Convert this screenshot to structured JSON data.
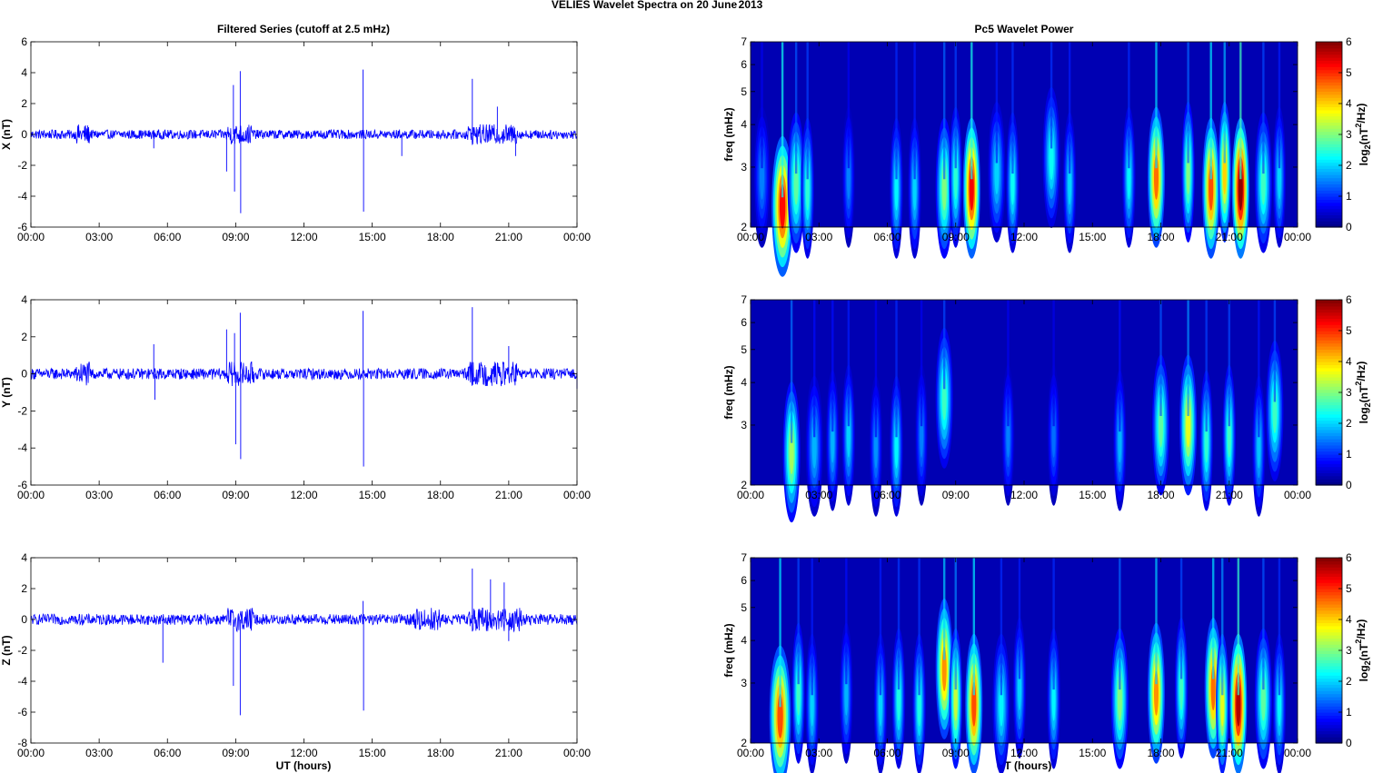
{
  "figure": {
    "suptitle_left": "VELIES Wavelet Spectra on 20 June",
    "suptitle_right": "2013",
    "left_title": "Filtered Series (cutoff at 2.5 mHz)",
    "right_title": "Pc5 Wavelet Power",
    "xlabel": "UT (hours)",
    "x_ticks": [
      "00:00",
      "03:00",
      "06:00",
      "09:00",
      "12:00",
      "15:00",
      "18:00",
      "21:00",
      "00:00"
    ],
    "freq_label": "freq (mHz)",
    "freq_ticks": [
      "2",
      "3",
      "4",
      "5",
      "6",
      "7"
    ],
    "cbar_label_prefix": "log",
    "cbar_label_sub": "2",
    "cbar_label_mid": "(nT",
    "cbar_label_sup": "2",
    "cbar_label_end": "/Hz)",
    "cbar_ticks": [
      "0",
      "1",
      "2",
      "3",
      "4",
      "5",
      "6"
    ]
  },
  "chart_data": [
    {
      "type": "line",
      "panel": "X component filtered series",
      "ylabel": "X (nT)",
      "x_range_hours": [
        0,
        24
      ],
      "ylim": [
        -6,
        6
      ],
      "y_ticks": [
        "-6",
        "-4",
        "-2",
        "0",
        "2",
        "4",
        "6"
      ],
      "line_color": "#0000ff",
      "noise_amplitude_nT": 0.3,
      "active_intervals_hours": [
        [
          2.0,
          2.6
        ],
        [
          8.6,
          9.8
        ],
        [
          19.2,
          21.4
        ]
      ],
      "spikes": [
        {
          "t_hours": 5.4,
          "value_nT": -0.9
        },
        {
          "t_hours": 8.6,
          "value_nT": -2.4
        },
        {
          "t_hours": 8.9,
          "value_nT": 3.2
        },
        {
          "t_hours": 8.95,
          "value_nT": -3.7
        },
        {
          "t_hours": 9.2,
          "value_nT": 4.1
        },
        {
          "t_hours": 9.22,
          "value_nT": -5.1
        },
        {
          "t_hours": 14.6,
          "value_nT": 4.2
        },
        {
          "t_hours": 14.62,
          "value_nT": -5.0
        },
        {
          "t_hours": 16.3,
          "value_nT": -1.4
        },
        {
          "t_hours": 19.4,
          "value_nT": 3.6
        },
        {
          "t_hours": 20.5,
          "value_nT": 1.8
        },
        {
          "t_hours": 21.3,
          "value_nT": -1.4
        }
      ]
    },
    {
      "type": "line",
      "panel": "Y component filtered series",
      "ylabel": "Y (nT)",
      "x_range_hours": [
        0,
        24
      ],
      "ylim": [
        -6,
        4
      ],
      "y_ticks": [
        "-6",
        "-4",
        "-2",
        "0",
        "2",
        "4"
      ],
      "line_color": "#0000ff",
      "noise_amplitude_nT": 0.3,
      "active_intervals_hours": [
        [
          2.0,
          2.6
        ],
        [
          8.6,
          9.8
        ],
        [
          19.2,
          21.4
        ]
      ],
      "spikes": [
        {
          "t_hours": 5.4,
          "value_nT": 1.6
        },
        {
          "t_hours": 5.45,
          "value_nT": -1.4
        },
        {
          "t_hours": 8.6,
          "value_nT": 2.4
        },
        {
          "t_hours": 8.95,
          "value_nT": 2.2
        },
        {
          "t_hours": 9.0,
          "value_nT": -3.8
        },
        {
          "t_hours": 9.2,
          "value_nT": 3.3
        },
        {
          "t_hours": 9.22,
          "value_nT": -4.6
        },
        {
          "t_hours": 14.6,
          "value_nT": 3.4
        },
        {
          "t_hours": 14.62,
          "value_nT": -5.0
        },
        {
          "t_hours": 19.4,
          "value_nT": 3.6
        },
        {
          "t_hours": 21.0,
          "value_nT": 1.5
        },
        {
          "t_hours": 24.0,
          "value_nT": -0.8
        }
      ]
    },
    {
      "type": "line",
      "panel": "Z component filtered series",
      "ylabel": "Z (nT)",
      "x_range_hours": [
        0,
        24
      ],
      "ylim": [
        -8,
        4
      ],
      "y_ticks": [
        "-8",
        "-6",
        "-4",
        "-2",
        "0",
        "2",
        "4"
      ],
      "line_color": "#0000ff",
      "noise_amplitude_nT": 0.35,
      "active_intervals_hours": [
        [
          8.6,
          9.8
        ],
        [
          16.8,
          18.0
        ],
        [
          19.2,
          21.6
        ]
      ],
      "spikes": [
        {
          "t_hours": 5.8,
          "value_nT": -2.8
        },
        {
          "t_hours": 8.9,
          "value_nT": -4.3
        },
        {
          "t_hours": 9.2,
          "value_nT": -6.2
        },
        {
          "t_hours": 14.6,
          "value_nT": 1.2
        },
        {
          "t_hours": 14.62,
          "value_nT": -5.9
        },
        {
          "t_hours": 19.4,
          "value_nT": 3.3
        },
        {
          "t_hours": 20.2,
          "value_nT": 2.6
        },
        {
          "t_hours": 20.8,
          "value_nT": 2.4
        },
        {
          "t_hours": 21.0,
          "value_nT": -1.4
        }
      ]
    },
    {
      "type": "heatmap",
      "panel": "X component Pc5 wavelet power",
      "xlabel": "UT (hours)",
      "ylabel": "freq (mHz)",
      "y_scale": "log",
      "ylim_mHz": [
        2,
        7
      ],
      "clim": [
        0,
        6
      ],
      "colormap": "jet",
      "colorbar_label": "log2(nT^2/Hz)",
      "blobs": [
        {
          "t_hours": 1.4,
          "f_mHz": 2.3,
          "power": 5.2,
          "width_hours": 0.25
        },
        {
          "t_hours": 2.0,
          "f_mHz": 2.7,
          "power": 2.8,
          "width_hours": 0.2
        },
        {
          "t_hours": 2.5,
          "f_mHz": 2.6,
          "power": 2.5,
          "width_hours": 0.15
        },
        {
          "t_hours": 0.5,
          "f_mHz": 2.8,
          "power": 1.5,
          "width_hours": 0.2
        },
        {
          "t_hours": 4.3,
          "f_mHz": 2.8,
          "power": 1.5,
          "width_hours": 0.15
        },
        {
          "t_hours": 6.4,
          "f_mHz": 2.6,
          "power": 2.2,
          "width_hours": 0.15
        },
        {
          "t_hours": 7.2,
          "f_mHz": 2.6,
          "power": 2.0,
          "width_hours": 0.15
        },
        {
          "t_hours": 8.5,
          "f_mHz": 2.6,
          "power": 3.0,
          "width_hours": 0.2
        },
        {
          "t_hours": 9.0,
          "f_mHz": 2.8,
          "power": 2.5,
          "width_hours": 0.15
        },
        {
          "t_hours": 9.7,
          "f_mHz": 2.6,
          "power": 5.3,
          "width_hours": 0.2
        },
        {
          "t_hours": 10.8,
          "f_mHz": 2.9,
          "power": 2.0,
          "width_hours": 0.2
        },
        {
          "t_hours": 11.5,
          "f_mHz": 2.7,
          "power": 2.3,
          "width_hours": 0.15
        },
        {
          "t_hours": 13.2,
          "f_mHz": 3.2,
          "power": 2.3,
          "width_hours": 0.2
        },
        {
          "t_hours": 14.0,
          "f_mHz": 2.7,
          "power": 2.0,
          "width_hours": 0.15
        },
        {
          "t_hours": 16.6,
          "f_mHz": 2.8,
          "power": 2.2,
          "width_hours": 0.15
        },
        {
          "t_hours": 17.8,
          "f_mHz": 2.8,
          "power": 4.6,
          "width_hours": 0.2
        },
        {
          "t_hours": 19.2,
          "f_mHz": 2.9,
          "power": 3.0,
          "width_hours": 0.15
        },
        {
          "t_hours": 20.2,
          "f_mHz": 2.6,
          "power": 4.8,
          "width_hours": 0.2
        },
        {
          "t_hours": 20.8,
          "f_mHz": 2.9,
          "power": 4.0,
          "width_hours": 0.15
        },
        {
          "t_hours": 21.5,
          "f_mHz": 2.6,
          "power": 5.9,
          "width_hours": 0.2
        },
        {
          "t_hours": 22.5,
          "f_mHz": 2.7,
          "power": 2.6,
          "width_hours": 0.2
        },
        {
          "t_hours": 23.2,
          "f_mHz": 2.8,
          "power": 2.0,
          "width_hours": 0.15
        }
      ]
    },
    {
      "type": "heatmap",
      "panel": "Y component Pc5 wavelet power",
      "xlabel": "UT (hours)",
      "ylabel": "freq (mHz)",
      "y_scale": "log",
      "ylim_mHz": [
        2,
        7
      ],
      "clim": [
        0,
        6
      ],
      "colormap": "jet",
      "colorbar_label": "log2(nT^2/Hz)",
      "blobs": [
        {
          "t_hours": 1.8,
          "f_mHz": 2.5,
          "power": 3.2,
          "width_hours": 0.2
        },
        {
          "t_hours": 2.8,
          "f_mHz": 2.6,
          "power": 1.8,
          "width_hours": 0.2
        },
        {
          "t_hours": 3.6,
          "f_mHz": 2.7,
          "power": 1.8,
          "width_hours": 0.15
        },
        {
          "t_hours": 4.3,
          "f_mHz": 2.8,
          "power": 2.0,
          "width_hours": 0.15
        },
        {
          "t_hours": 5.5,
          "f_mHz": 2.6,
          "power": 1.6,
          "width_hours": 0.15
        },
        {
          "t_hours": 6.4,
          "f_mHz": 2.6,
          "power": 2.2,
          "width_hours": 0.15
        },
        {
          "t_hours": 7.5,
          "f_mHz": 2.8,
          "power": 1.5,
          "width_hours": 0.15
        },
        {
          "t_hours": 8.5,
          "f_mHz": 3.6,
          "power": 2.6,
          "width_hours": 0.2
        },
        {
          "t_hours": 11.3,
          "f_mHz": 2.8,
          "power": 1.5,
          "width_hours": 0.15
        },
        {
          "t_hours": 13.3,
          "f_mHz": 2.8,
          "power": 1.4,
          "width_hours": 0.15
        },
        {
          "t_hours": 16.2,
          "f_mHz": 2.7,
          "power": 1.8,
          "width_hours": 0.15
        },
        {
          "t_hours": 18.0,
          "f_mHz": 3.0,
          "power": 2.8,
          "width_hours": 0.2
        },
        {
          "t_hours": 19.2,
          "f_mHz": 3.0,
          "power": 3.6,
          "width_hours": 0.2
        },
        {
          "t_hours": 20.0,
          "f_mHz": 2.7,
          "power": 2.5,
          "width_hours": 0.15
        },
        {
          "t_hours": 21.0,
          "f_mHz": 2.8,
          "power": 2.6,
          "width_hours": 0.15
        },
        {
          "t_hours": 22.3,
          "f_mHz": 2.6,
          "power": 1.9,
          "width_hours": 0.15
        },
        {
          "t_hours": 23.0,
          "f_mHz": 3.3,
          "power": 2.6,
          "width_hours": 0.2
        }
      ]
    },
    {
      "type": "heatmap",
      "panel": "Z component Pc5 wavelet power",
      "xlabel": "UT (hours)",
      "ylabel": "freq (mHz)",
      "y_scale": "log",
      "ylim_mHz": [
        2,
        7
      ],
      "clim": [
        0,
        6
      ],
      "colormap": "jet",
      "colorbar_label": "log2(nT^2/Hz)",
      "blobs": [
        {
          "t_hours": 1.3,
          "f_mHz": 2.4,
          "power": 4.8,
          "width_hours": 0.25
        },
        {
          "t_hours": 2.1,
          "f_mHz": 2.8,
          "power": 2.6,
          "width_hours": 0.15
        },
        {
          "t_hours": 2.7,
          "f_mHz": 2.6,
          "power": 2.0,
          "width_hours": 0.15
        },
        {
          "t_hours": 4.2,
          "f_mHz": 2.8,
          "power": 1.8,
          "width_hours": 0.15
        },
        {
          "t_hours": 5.7,
          "f_mHz": 2.6,
          "power": 2.0,
          "width_hours": 0.15
        },
        {
          "t_hours": 6.5,
          "f_mHz": 2.7,
          "power": 2.4,
          "width_hours": 0.15
        },
        {
          "t_hours": 7.4,
          "f_mHz": 2.6,
          "power": 2.4,
          "width_hours": 0.15
        },
        {
          "t_hours": 8.5,
          "f_mHz": 3.3,
          "power": 4.4,
          "width_hours": 0.2
        },
        {
          "t_hours": 9.0,
          "f_mHz": 2.7,
          "power": 3.4,
          "width_hours": 0.15
        },
        {
          "t_hours": 9.8,
          "f_mHz": 2.6,
          "power": 4.8,
          "width_hours": 0.2
        },
        {
          "t_hours": 11.0,
          "f_mHz": 2.6,
          "power": 2.2,
          "width_hours": 0.2
        },
        {
          "t_hours": 11.8,
          "f_mHz": 2.9,
          "power": 2.0,
          "width_hours": 0.15
        },
        {
          "t_hours": 13.3,
          "f_mHz": 2.7,
          "power": 2.2,
          "width_hours": 0.15
        },
        {
          "t_hours": 16.2,
          "f_mHz": 2.7,
          "power": 3.0,
          "width_hours": 0.2
        },
        {
          "t_hours": 17.8,
          "f_mHz": 2.8,
          "power": 4.4,
          "width_hours": 0.2
        },
        {
          "t_hours": 18.9,
          "f_mHz": 2.9,
          "power": 2.6,
          "width_hours": 0.15
        },
        {
          "t_hours": 20.3,
          "f_mHz": 2.9,
          "power": 4.6,
          "width_hours": 0.2
        },
        {
          "t_hours": 20.7,
          "f_mHz": 2.6,
          "power": 3.6,
          "width_hours": 0.15
        },
        {
          "t_hours": 21.4,
          "f_mHz": 2.6,
          "power": 5.7,
          "width_hours": 0.2
        },
        {
          "t_hours": 22.5,
          "f_mHz": 2.7,
          "power": 2.8,
          "width_hours": 0.2
        },
        {
          "t_hours": 23.2,
          "f_mHz": 2.6,
          "power": 2.2,
          "width_hours": 0.15
        }
      ]
    }
  ]
}
